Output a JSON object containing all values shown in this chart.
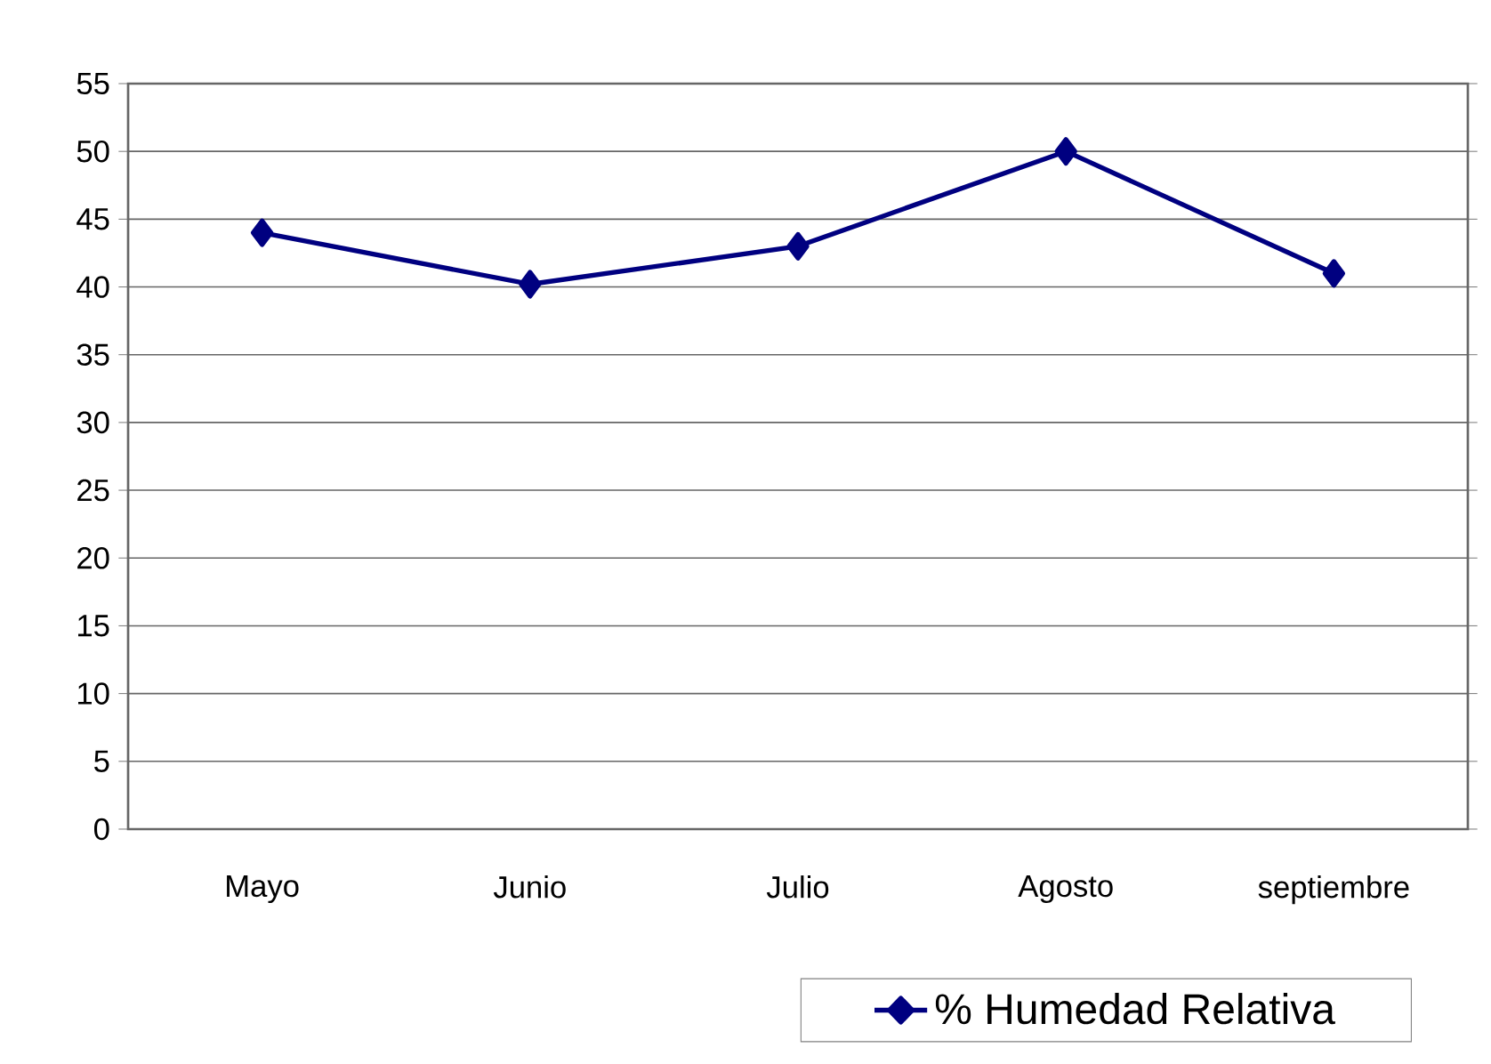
{
  "chart_data": {
    "type": "line",
    "categories": [
      "Mayo",
      "Junio",
      "Julio",
      "Agosto",
      "septiembre"
    ],
    "series": [
      {
        "name": "% Humedad Relativa",
        "color": "#000080",
        "values": [
          44,
          40.2,
          43,
          50,
          41
        ]
      }
    ],
    "ylim": [
      0,
      55
    ],
    "yticks": [
      0,
      5,
      10,
      15,
      20,
      25,
      30,
      35,
      40,
      45,
      50,
      55
    ],
    "grid": "y",
    "legend": "bottom",
    "marker": "diamond",
    "line_style": "solid"
  }
}
